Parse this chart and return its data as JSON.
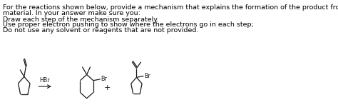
{
  "text_lines": [
    "For the reactions shown below, provide a mechanism that explains the formation of the product from the starting",
    "material. In your answer make sure you:",
    "Draw each step of the mechanism separately.",
    "Use proper electron pushing to show where the electrons go in each step;",
    "Do not use any solvent or reagents that are not provided."
  ],
  "reagent_label": "HBr",
  "plus_sign": "+",
  "bg_color": "#ffffff",
  "text_color": "#000000",
  "line_color": "#1a1a1a",
  "fontsize_text": 6.8,
  "fontsize_label": 5.8
}
